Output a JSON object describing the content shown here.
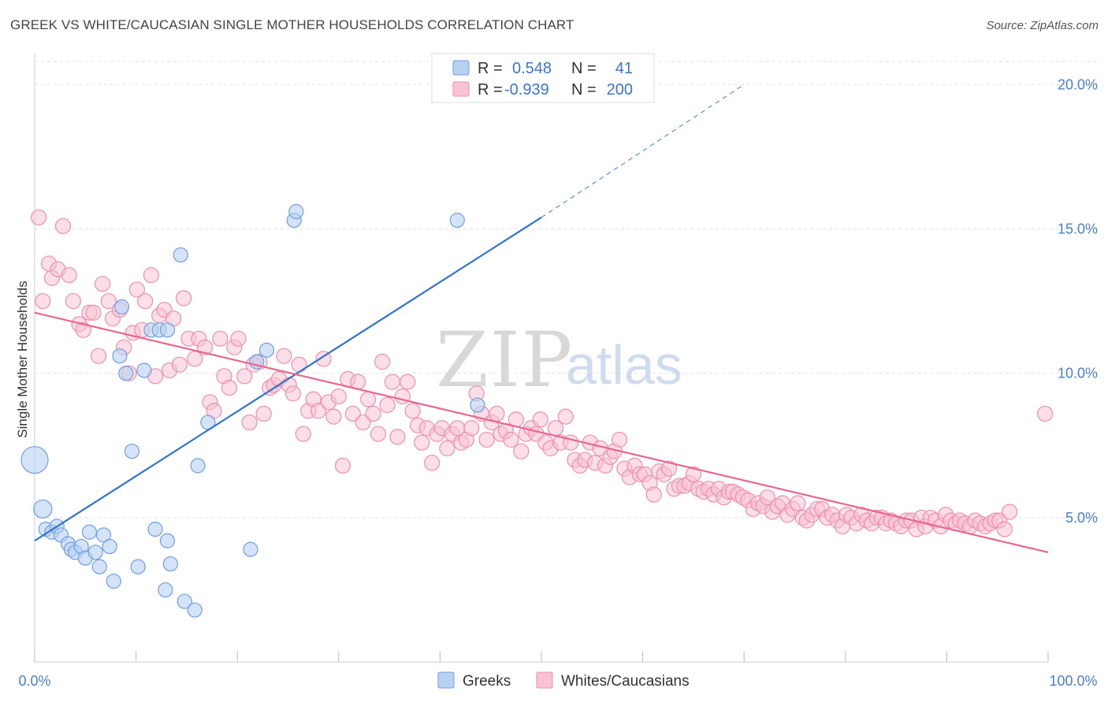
{
  "title": "GREEK VS WHITE/CAUCASIAN SINGLE MOTHER HOUSEHOLDS CORRELATION CHART",
  "source": "Source: ZipAtlas.com",
  "watermark": {
    "part1": "ZIP",
    "part2": "atlas"
  },
  "legend_top": {
    "r_label": "R =",
    "n_label": "N =",
    "rows": [
      {
        "r": "0.548",
        "n": "41"
      },
      {
        "r": "-0.939",
        "n": "200"
      }
    ]
  },
  "legend_bottom": [
    "Greeks",
    "Whites/Caucasians"
  ],
  "colors": {
    "greeks_fill": "#b8d1f3",
    "greeks_stroke": "#6f9ee0",
    "greeks_line": "#2f72cf",
    "whites_fill": "#f8c3d3",
    "whites_stroke": "#ee8fae",
    "whites_line": "#e8668f",
    "tick_label": "#4a7fd0"
  },
  "chart_data": {
    "type": "scatter",
    "title": "GREEK VS WHITE/CAUCASIAN SINGLE MOTHER HOUSEHOLDS CORRELATION CHART",
    "xlabel": "",
    "ylabel": "Single Mother Households",
    "xlim": [
      0,
      100
    ],
    "ylim": [
      0,
      20.8
    ],
    "x_tick_labels": [
      "0.0%",
      "100.0%"
    ],
    "y_ticks": [
      5,
      10,
      15,
      20
    ],
    "y_tick_labels": [
      "5.0%",
      "10.0%",
      "15.0%",
      "20.0%"
    ],
    "grid": true,
    "legend_position": "top-center",
    "series": [
      {
        "name": "Greeks",
        "r": 0.548,
        "n": 41,
        "points": [
          [
            0.0,
            7.0,
            3
          ],
          [
            0.8,
            5.3,
            2
          ],
          [
            1.1,
            4.6,
            1
          ],
          [
            1.7,
            4.5,
            1
          ],
          [
            2.2,
            4.7,
            1
          ],
          [
            2.6,
            4.4,
            1
          ],
          [
            3.3,
            4.1,
            1
          ],
          [
            3.6,
            3.9,
            1
          ],
          [
            4.0,
            3.8,
            1
          ],
          [
            4.6,
            4.0,
            1
          ],
          [
            5.0,
            3.6,
            1
          ],
          [
            5.4,
            4.5,
            1
          ],
          [
            6.0,
            3.8,
            1
          ],
          [
            6.4,
            3.3,
            1
          ],
          [
            6.8,
            4.4,
            1
          ],
          [
            7.4,
            4.0,
            1
          ],
          [
            7.8,
            2.8,
            1
          ],
          [
            8.4,
            10.6,
            1
          ],
          [
            8.6,
            12.3,
            1
          ],
          [
            9.0,
            10.0,
            1
          ],
          [
            9.6,
            7.3,
            1
          ],
          [
            10.2,
            3.3,
            1
          ],
          [
            10.8,
            10.1,
            1
          ],
          [
            11.5,
            11.5,
            1
          ],
          [
            11.9,
            4.6,
            1
          ],
          [
            12.3,
            11.5,
            1
          ],
          [
            12.9,
            2.5,
            1
          ],
          [
            13.1,
            4.2,
            1
          ],
          [
            13.1,
            11.5,
            1
          ],
          [
            13.4,
            3.4,
            1
          ],
          [
            14.4,
            14.1,
            1
          ],
          [
            14.8,
            2.1,
            1
          ],
          [
            15.8,
            1.8,
            1
          ],
          [
            16.1,
            6.8,
            1
          ],
          [
            17.1,
            8.3,
            1
          ],
          [
            21.3,
            3.9,
            1
          ],
          [
            21.9,
            10.4,
            1
          ],
          [
            22.9,
            10.8,
            1
          ],
          [
            25.6,
            15.3,
            1
          ],
          [
            25.8,
            15.6,
            1
          ],
          [
            41.7,
            15.3,
            1
          ],
          [
            43.7,
            8.9,
            1
          ]
        ],
        "trend": {
          "x": [
            0,
            50
          ],
          "y": [
            4.2,
            15.4
          ],
          "dashed_to": [
            70,
            20.0
          ]
        }
      },
      {
        "name": "Whites/Caucasians",
        "r": -0.939,
        "n": 200,
        "points": [
          [
            0.4,
            15.4
          ],
          [
            0.8,
            12.5
          ],
          [
            1.4,
            13.8
          ],
          [
            1.7,
            13.3
          ],
          [
            2.3,
            13.6
          ],
          [
            2.8,
            15.1
          ],
          [
            3.4,
            13.4
          ],
          [
            3.8,
            12.5
          ],
          [
            4.4,
            11.7
          ],
          [
            4.8,
            11.5
          ],
          [
            5.4,
            12.1
          ],
          [
            5.8,
            12.1
          ],
          [
            6.3,
            10.6
          ],
          [
            6.7,
            13.1
          ],
          [
            7.3,
            12.5
          ],
          [
            7.7,
            11.9
          ],
          [
            8.4,
            12.2
          ],
          [
            8.8,
            10.9
          ],
          [
            9.3,
            10.0
          ],
          [
            9.7,
            11.4
          ],
          [
            10.1,
            12.9
          ],
          [
            10.6,
            11.5
          ],
          [
            10.9,
            12.5
          ],
          [
            11.5,
            13.4
          ],
          [
            11.9,
            9.9
          ],
          [
            12.3,
            12.0
          ],
          [
            12.8,
            12.2
          ],
          [
            13.3,
            10.1
          ],
          [
            13.7,
            11.9
          ],
          [
            14.3,
            10.3
          ],
          [
            14.7,
            12.6
          ],
          [
            15.2,
            11.2
          ],
          [
            15.8,
            10.5
          ],
          [
            16.2,
            11.2
          ],
          [
            16.8,
            10.9
          ],
          [
            17.3,
            9.0
          ],
          [
            17.7,
            8.7
          ],
          [
            18.3,
            11.2
          ],
          [
            18.7,
            9.9
          ],
          [
            19.2,
            9.5
          ],
          [
            19.7,
            10.9
          ],
          [
            20.1,
            11.2
          ],
          [
            20.7,
            9.9
          ],
          [
            21.2,
            8.3
          ],
          [
            21.6,
            10.3
          ],
          [
            22.2,
            10.4
          ],
          [
            22.6,
            8.6
          ],
          [
            23.2,
            9.5
          ],
          [
            23.6,
            9.6
          ],
          [
            24.1,
            9.8
          ],
          [
            24.6,
            10.6
          ],
          [
            25.1,
            9.6
          ],
          [
            25.5,
            9.3
          ],
          [
            26.1,
            10.3
          ],
          [
            26.5,
            7.9
          ],
          [
            27.0,
            8.7
          ],
          [
            27.5,
            9.1
          ],
          [
            28.0,
            8.7
          ],
          [
            28.5,
            10.5
          ],
          [
            29.0,
            9.0
          ],
          [
            29.5,
            8.5
          ],
          [
            30.0,
            9.2
          ],
          [
            30.4,
            6.8
          ],
          [
            30.9,
            9.8
          ],
          [
            31.4,
            8.6
          ],
          [
            31.9,
            9.7
          ],
          [
            32.4,
            8.3
          ],
          [
            32.9,
            9.1
          ],
          [
            33.4,
            8.6
          ],
          [
            33.9,
            7.9
          ],
          [
            34.3,
            10.4
          ],
          [
            34.8,
            8.9
          ],
          [
            35.3,
            9.7
          ],
          [
            35.8,
            7.8
          ],
          [
            36.3,
            9.2
          ],
          [
            36.8,
            9.7
          ],
          [
            37.3,
            8.7
          ],
          [
            37.8,
            8.2
          ],
          [
            38.2,
            7.6
          ],
          [
            38.7,
            8.1
          ],
          [
            39.2,
            6.9
          ],
          [
            39.7,
            7.9
          ],
          [
            40.2,
            8.1
          ],
          [
            40.7,
            7.4
          ],
          [
            41.2,
            7.9
          ],
          [
            41.7,
            8.1
          ],
          [
            42.1,
            7.6
          ],
          [
            42.6,
            7.7
          ],
          [
            43.1,
            8.1
          ],
          [
            43.6,
            9.3
          ],
          [
            44.1,
            8.6
          ],
          [
            44.6,
            7.7
          ],
          [
            45.1,
            8.3
          ],
          [
            45.6,
            8.6
          ],
          [
            46.0,
            7.9
          ],
          [
            46.5,
            8.0
          ],
          [
            47.0,
            7.7
          ],
          [
            47.5,
            8.4
          ],
          [
            48.0,
            7.3
          ],
          [
            48.5,
            7.9
          ],
          [
            49.0,
            8.1
          ],
          [
            49.5,
            7.9
          ],
          [
            49.9,
            8.4
          ],
          [
            50.4,
            7.6
          ],
          [
            50.9,
            7.4
          ],
          [
            51.4,
            8.1
          ],
          [
            51.9,
            7.6
          ],
          [
            52.4,
            8.5
          ],
          [
            52.9,
            7.6
          ],
          [
            53.3,
            7.0
          ],
          [
            53.8,
            6.8
          ],
          [
            54.3,
            7.0
          ],
          [
            54.8,
            7.6
          ],
          [
            55.3,
            6.9
          ],
          [
            55.8,
            7.4
          ],
          [
            56.3,
            6.8
          ],
          [
            56.8,
            7.1
          ],
          [
            57.2,
            7.3
          ],
          [
            57.7,
            7.7
          ],
          [
            58.2,
            6.7
          ],
          [
            58.7,
            6.4
          ],
          [
            59.2,
            6.8
          ],
          [
            59.7,
            6.5
          ],
          [
            60.2,
            6.5
          ],
          [
            60.7,
            6.2
          ],
          [
            61.1,
            5.8
          ],
          [
            61.6,
            6.6
          ],
          [
            62.1,
            6.5
          ],
          [
            62.6,
            6.7
          ],
          [
            63.1,
            6.0
          ],
          [
            63.6,
            6.1
          ],
          [
            64.1,
            6.1
          ],
          [
            64.6,
            6.2
          ],
          [
            65.0,
            6.5
          ],
          [
            65.5,
            6.0
          ],
          [
            66.0,
            5.9
          ],
          [
            66.5,
            6.0
          ],
          [
            67.0,
            5.8
          ],
          [
            67.5,
            6.0
          ],
          [
            68.0,
            5.7
          ],
          [
            68.5,
            5.9
          ],
          [
            68.9,
            5.9
          ],
          [
            69.4,
            5.8
          ],
          [
            69.9,
            5.7
          ],
          [
            70.4,
            5.6
          ],
          [
            70.9,
            5.3
          ],
          [
            71.4,
            5.5
          ],
          [
            71.9,
            5.4
          ],
          [
            72.3,
            5.7
          ],
          [
            72.8,
            5.2
          ],
          [
            73.3,
            5.4
          ],
          [
            73.8,
            5.5
          ],
          [
            74.3,
            5.1
          ],
          [
            74.8,
            5.3
          ],
          [
            75.3,
            5.5
          ],
          [
            75.8,
            5.0
          ],
          [
            76.2,
            4.9
          ],
          [
            76.7,
            5.1
          ],
          [
            77.2,
            5.3
          ],
          [
            77.7,
            5.3
          ],
          [
            78.2,
            5.0
          ],
          [
            78.7,
            5.1
          ],
          [
            79.2,
            4.9
          ],
          [
            79.7,
            4.7
          ],
          [
            80.1,
            5.1
          ],
          [
            80.6,
            5.0
          ],
          [
            81.1,
            4.8
          ],
          [
            81.6,
            5.1
          ],
          [
            82.1,
            4.9
          ],
          [
            82.6,
            4.8
          ],
          [
            83.1,
            5.0
          ],
          [
            83.6,
            5.0
          ],
          [
            84.0,
            4.8
          ],
          [
            84.5,
            4.9
          ],
          [
            85.0,
            4.8
          ],
          [
            85.5,
            4.7
          ],
          [
            86.0,
            4.9
          ],
          [
            86.5,
            4.9
          ],
          [
            87.0,
            4.6
          ],
          [
            87.5,
            5.0
          ],
          [
            87.9,
            4.7
          ],
          [
            88.4,
            5.0
          ],
          [
            88.9,
            4.9
          ],
          [
            89.4,
            4.7
          ],
          [
            89.9,
            5.1
          ],
          [
            90.4,
            4.9
          ],
          [
            90.9,
            4.8
          ],
          [
            91.3,
            4.9
          ],
          [
            91.8,
            4.8
          ],
          [
            92.3,
            4.7
          ],
          [
            92.8,
            4.9
          ],
          [
            93.3,
            4.8
          ],
          [
            93.8,
            4.7
          ],
          [
            94.3,
            4.8
          ],
          [
            94.8,
            4.9
          ],
          [
            95.2,
            4.9
          ],
          [
            95.7,
            4.6
          ],
          [
            96.2,
            5.2
          ],
          [
            99.7,
            8.6
          ]
        ],
        "trend": {
          "x": [
            0,
            100
          ],
          "y": [
            12.1,
            3.8
          ]
        }
      }
    ]
  }
}
